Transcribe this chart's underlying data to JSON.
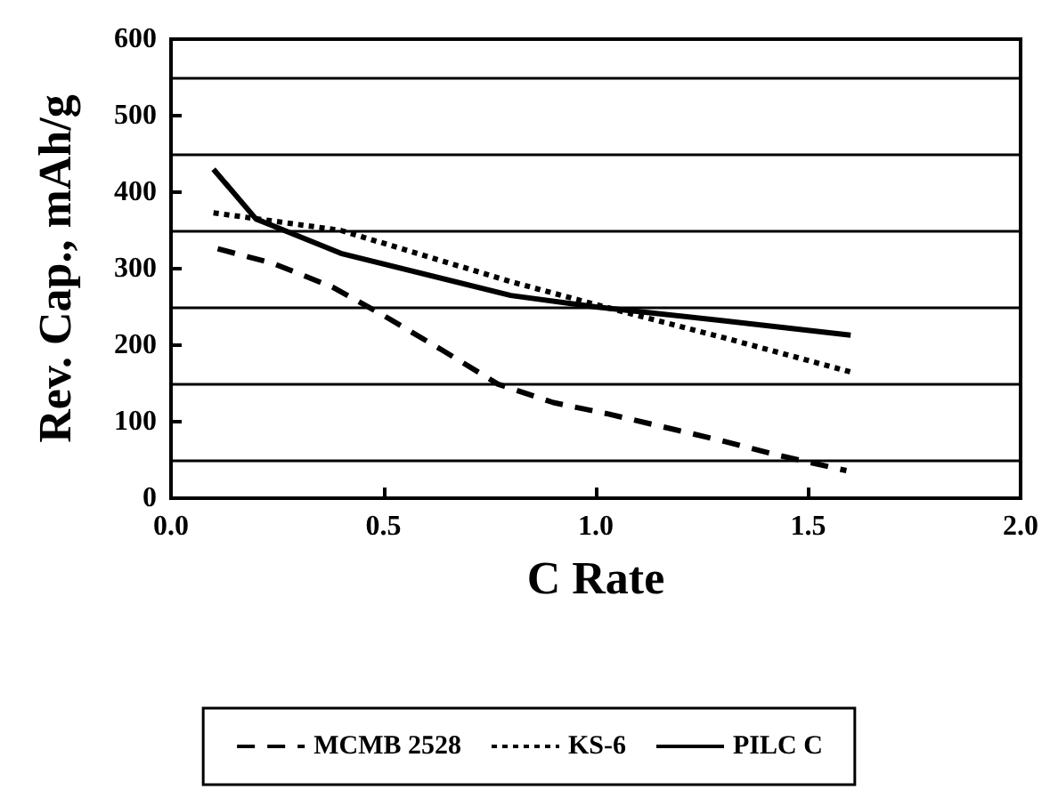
{
  "chart_data": {
    "type": "line",
    "xlabel": "C Rate",
    "ylabel": "Rev. Cap., mAh/g",
    "xlim": [
      0,
      2
    ],
    "xticks": [
      {
        "value": 0,
        "label": "0.0"
      },
      0.5,
      {
        "value": 1,
        "label": "1.0"
      },
      1.5,
      {
        "value": 2,
        "label": "2.0"
      }
    ],
    "ylim": [
      0,
      600
    ],
    "yticks": [
      0,
      100,
      200,
      300,
      400,
      500,
      600
    ],
    "grid": false,
    "legend": "bottom",
    "marker": "none",
    "ref_lines": [
      {
        "axis": "y",
        "value": 50,
        "color": "#000000"
      },
      {
        "axis": "y",
        "value": 150,
        "color": "#000000"
      },
      {
        "axis": "y",
        "value": 250,
        "color": "#000000"
      },
      {
        "axis": "y",
        "value": 350,
        "color": "#000000"
      },
      {
        "axis": "y",
        "value": 450,
        "color": "#000000"
      },
      {
        "axis": "y",
        "value": 550,
        "color": "#000000"
      }
    ],
    "series": [
      {
        "name": "MCMB 2528",
        "color": "#000000",
        "line_style": "dashed",
        "x": [
          0.11,
          0.24,
          0.38,
          0.5,
          0.64,
          0.77,
          0.9,
          1.03,
          1.16,
          1.29,
          1.43,
          1.59
        ],
        "values": [
          326,
          307,
          276,
          239,
          193,
          149,
          125,
          110,
          93,
          76,
          56,
          36
        ]
      },
      {
        "name": "KS-6",
        "color": "#000000",
        "line_style": "dotted",
        "x": [
          0.1,
          0.4,
          0.8,
          1.0,
          1.3,
          1.6
        ],
        "values": [
          373,
          350,
          283,
          253,
          210,
          165
        ]
      },
      {
        "name": "PILC C",
        "color": "#000000",
        "line_style": "solid",
        "x": [
          0.1,
          0.2,
          0.4,
          0.8,
          1.0,
          1.3,
          1.6
        ],
        "values": [
          430,
          365,
          320,
          265,
          250,
          232,
          213
        ]
      }
    ]
  }
}
